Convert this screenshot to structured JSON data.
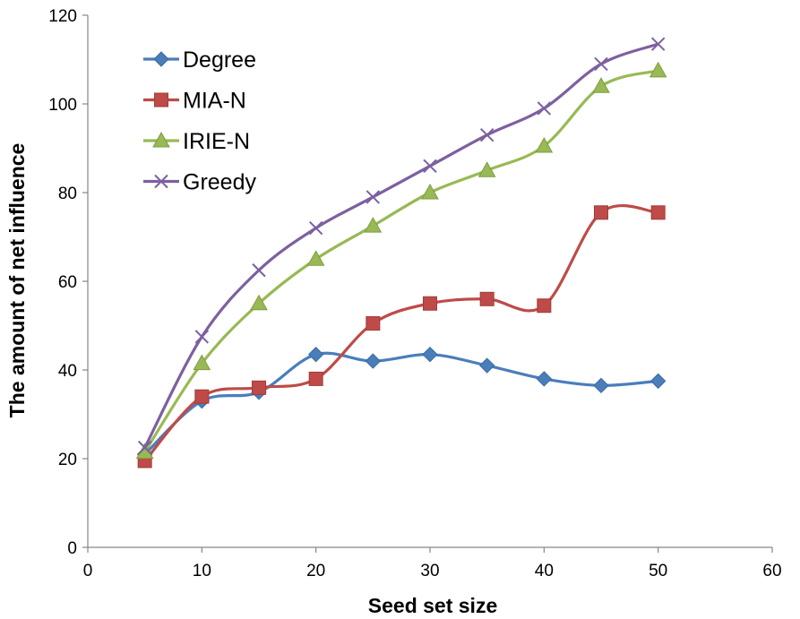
{
  "chart_data": {
    "type": "line",
    "title": "",
    "xlabel": "Seed set size",
    "ylabel": "The amount of net influence",
    "xlim": [
      0,
      60
    ],
    "ylim": [
      0,
      120
    ],
    "xticks": [
      0,
      10,
      20,
      30,
      40,
      50,
      60
    ],
    "yticks": [
      0,
      20,
      40,
      60,
      80,
      100,
      120
    ],
    "grid": false,
    "legend_position": "top-left",
    "x": [
      5,
      10,
      15,
      20,
      25,
      30,
      35,
      40,
      45,
      50
    ],
    "series": [
      {
        "name": "Degree",
        "color": "#4a7ebb",
        "marker": "diamond",
        "values": [
          21,
          33,
          35,
          43.5,
          42,
          43.5,
          41,
          38,
          36.5,
          37.5
        ]
      },
      {
        "name": "MIA-N",
        "color": "#be4b48",
        "marker": "square",
        "values": [
          19.5,
          34,
          36,
          38,
          50.5,
          55,
          56,
          54.5,
          75.5,
          75.5
        ]
      },
      {
        "name": "IRIE-N",
        "color": "#98b954",
        "marker": "triangle",
        "values": [
          21.5,
          41.5,
          55,
          65,
          72.5,
          80,
          85,
          90.5,
          104,
          107.5
        ]
      },
      {
        "name": "Greedy",
        "color": "#7d60a0",
        "marker": "x",
        "values": [
          22.5,
          47.5,
          62.5,
          72,
          79,
          86,
          93,
          99,
          109,
          113.5
        ]
      }
    ]
  }
}
